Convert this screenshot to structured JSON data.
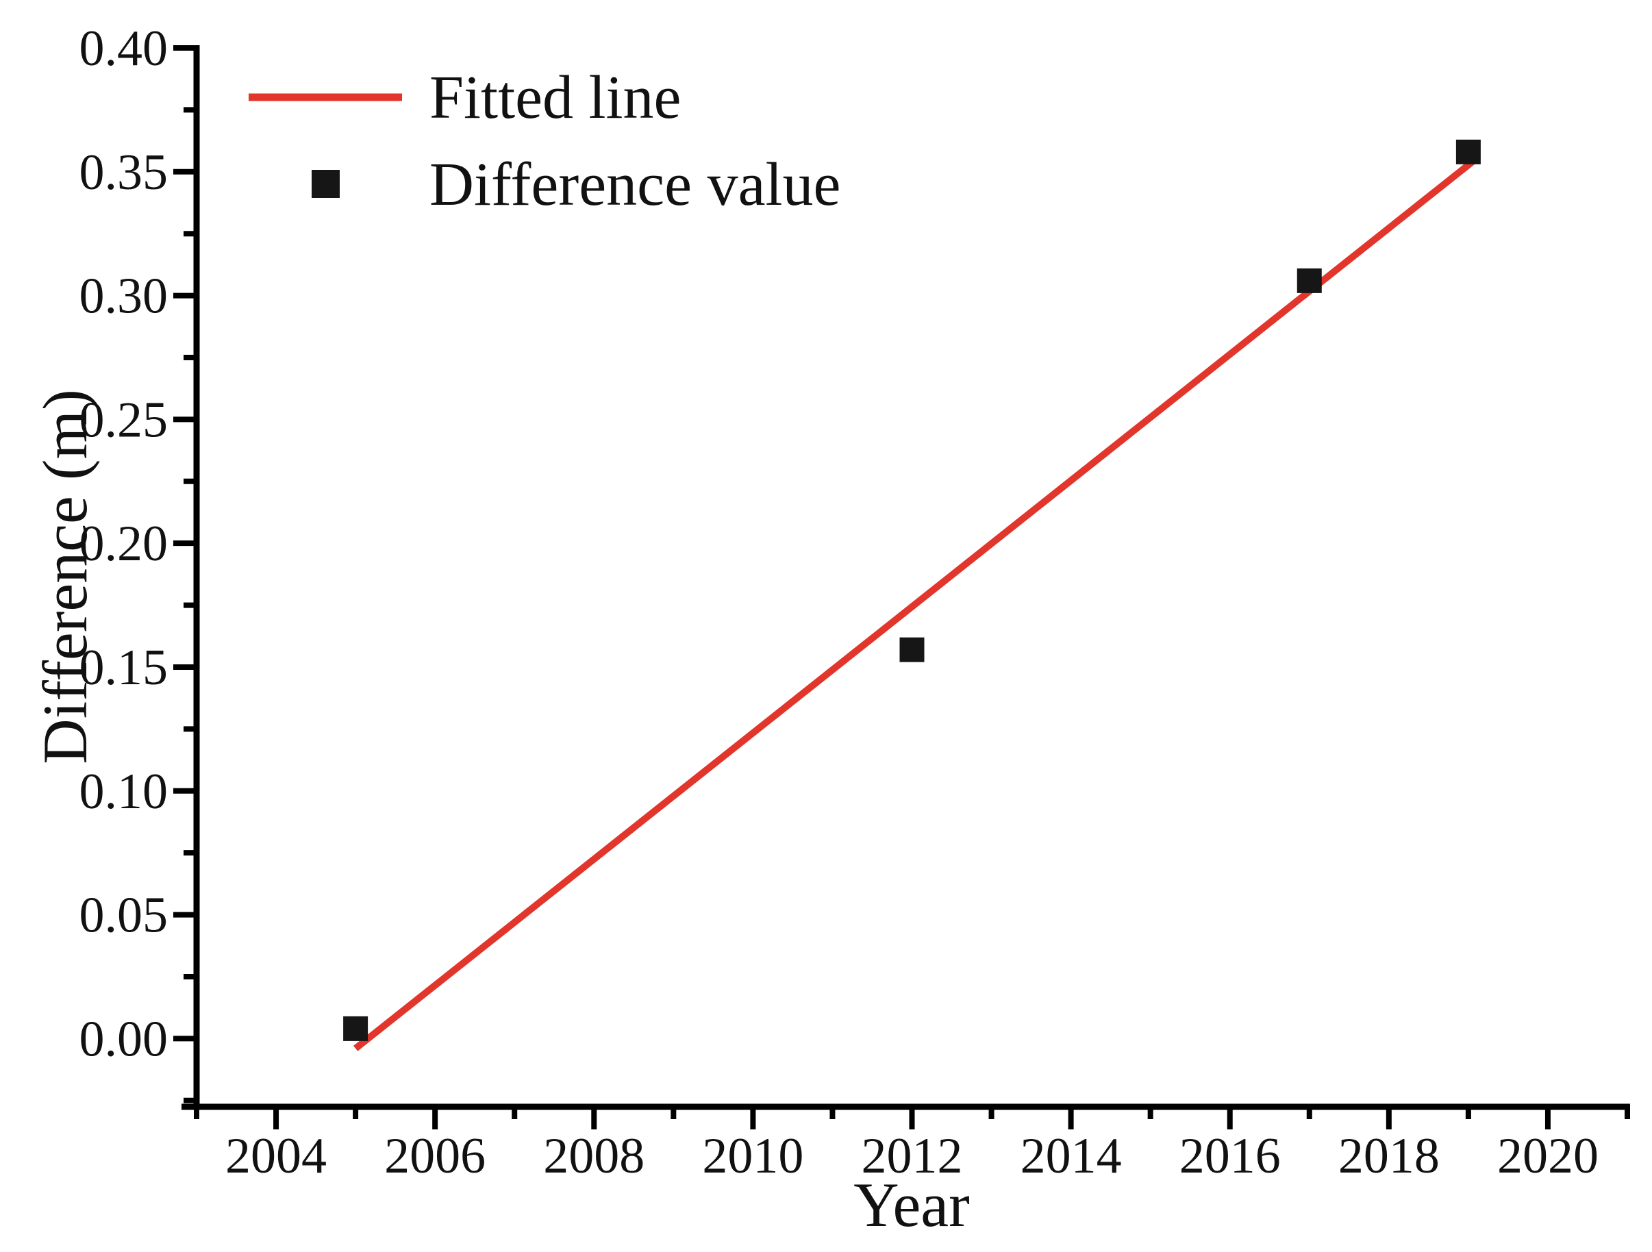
{
  "figure": {
    "background": "#ffffff"
  },
  "chart_data": {
    "type": "scatter",
    "title": "",
    "xlabel": "Year",
    "ylabel": "Difference (m)",
    "xlim": [
      2003,
      2021
    ],
    "ylim": [
      -0.027,
      0.4
    ],
    "grid": false,
    "x_major_ticks": [
      2004,
      2006,
      2008,
      2010,
      2012,
      2014,
      2016,
      2018,
      2020
    ],
    "x_minor_ticks": [
      2003,
      2005,
      2007,
      2009,
      2011,
      2013,
      2015,
      2017,
      2019,
      2021
    ],
    "y_major_ticks": [
      0.0,
      0.05,
      0.1,
      0.15,
      0.2,
      0.25,
      0.3,
      0.35,
      0.4
    ],
    "y_major_tick_labels": [
      "0.00",
      "0.05",
      "0.10",
      "0.15",
      "0.20",
      "0.25",
      "0.30",
      "0.35",
      "0.40"
    ],
    "y_minor_ticks": [
      -0.025,
      0.025,
      0.075,
      0.125,
      0.175,
      0.225,
      0.275,
      0.325,
      0.375
    ],
    "series": [
      {
        "name": "Fitted line",
        "kind": "line",
        "color": "#e2352b",
        "points": [
          [
            2005.0,
            -0.004
          ],
          [
            2019.05,
            0.354
          ]
        ]
      },
      {
        "name": "Difference value",
        "kind": "scatter",
        "marker": "square",
        "color": "#161616",
        "points": [
          [
            2005,
            0.004
          ],
          [
            2012,
            0.157
          ],
          [
            2017,
            0.306
          ],
          [
            2019,
            0.358
          ]
        ]
      }
    ],
    "legend": {
      "position": "top-left",
      "entries": [
        {
          "label": "Fitted line",
          "swatch": "line",
          "color": "#e2352b"
        },
        {
          "label": "Difference value",
          "swatch": "square",
          "color": "#161616"
        }
      ]
    },
    "axis_color": "#000000",
    "slope_m_per_year": 0.0256
  }
}
